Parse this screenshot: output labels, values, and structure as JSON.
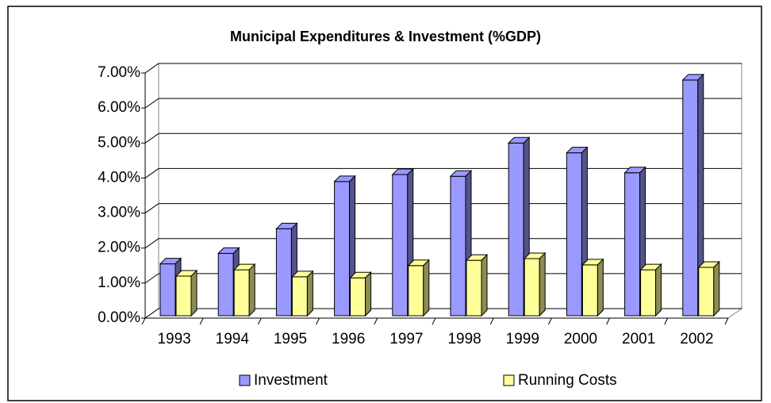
{
  "chart_data": {
    "type": "bar3d",
    "title": "Municipal Expenditures & Investment (%GDP)",
    "categories": [
      "1993",
      "1994",
      "1995",
      "1996",
      "1997",
      "1998",
      "1999",
      "2000",
      "2001",
      "2002"
    ],
    "series": [
      {
        "name": "Investment",
        "color": "#9999ff",
        "values": [
          1.55,
          1.85,
          2.55,
          3.9,
          4.1,
          4.05,
          5.0,
          4.72,
          4.15,
          6.8
        ]
      },
      {
        "name": "Running Costs",
        "color": "#ffff99",
        "values": [
          1.2,
          1.38,
          1.18,
          1.15,
          1.5,
          1.65,
          1.7,
          1.52,
          1.38,
          1.45
        ]
      }
    ],
    "ylim": [
      0,
      7
    ],
    "yticks": [
      {
        "value": 0,
        "label": "0.00%"
      },
      {
        "value": 1,
        "label": "1.00%"
      },
      {
        "value": 2,
        "label": "2.00%"
      },
      {
        "value": 3,
        "label": "3.00%"
      },
      {
        "value": 4,
        "label": "4.00%"
      },
      {
        "value": 5,
        "label": "5.00%"
      },
      {
        "value": 6,
        "label": "6.00%"
      },
      {
        "value": 7,
        "label": "7.00%"
      }
    ],
    "grid": true,
    "legend": "bottom"
  }
}
